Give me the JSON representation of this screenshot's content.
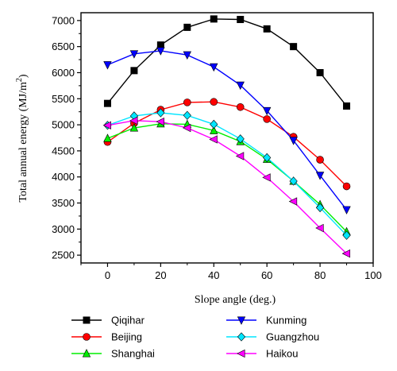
{
  "chart_data": {
    "type": "line",
    "xlabel": "Slope angle (deg.)",
    "ylabel": "Total annual energy (MJ/m²)",
    "xlim": [
      -10,
      100
    ],
    "ylim": [
      2350,
      7150
    ],
    "xticks": [
      0,
      20,
      40,
      60,
      80,
      100
    ],
    "yticks": [
      2500,
      3000,
      3500,
      4000,
      4500,
      5000,
      5500,
      6000,
      6500,
      7000
    ],
    "grid": false,
    "legend_position": "bottom",
    "x": [
      0,
      10,
      20,
      30,
      40,
      50,
      60,
      70,
      80,
      90
    ],
    "series": [
      {
        "name": "Qiqihar",
        "color": "#000000",
        "marker": "square",
        "values": [
          5410,
          6040,
          6530,
          6870,
          7030,
          7020,
          6840,
          6500,
          6000,
          5360
        ]
      },
      {
        "name": "Beijing",
        "color": "#ff0000",
        "marker": "circle",
        "values": [
          4670,
          5030,
          5290,
          5430,
          5440,
          5340,
          5110,
          4770,
          4330,
          3820
        ]
      },
      {
        "name": "Shanghai",
        "color": "#00ee00",
        "marker": "triangle-up",
        "values": [
          4740,
          4940,
          5020,
          5010,
          4890,
          4680,
          4340,
          3920,
          3470,
          2950
        ]
      },
      {
        "name": "Kunming",
        "color": "#0000ff",
        "marker": "triangle-down",
        "values": [
          6150,
          6360,
          6420,
          6340,
          6110,
          5760,
          5270,
          4700,
          4030,
          3370
        ]
      },
      {
        "name": "Guangzhou",
        "color": "#00e5ff",
        "marker": "diamond",
        "values": [
          4990,
          5170,
          5230,
          5180,
          5010,
          4730,
          4370,
          3920,
          3410,
          2880
        ]
      },
      {
        "name": "Haikou",
        "color": "#ff00ff",
        "marker": "triangle-left",
        "values": [
          4990,
          5080,
          5060,
          4940,
          4720,
          4400,
          3990,
          3530,
          3020,
          2530
        ]
      }
    ]
  }
}
